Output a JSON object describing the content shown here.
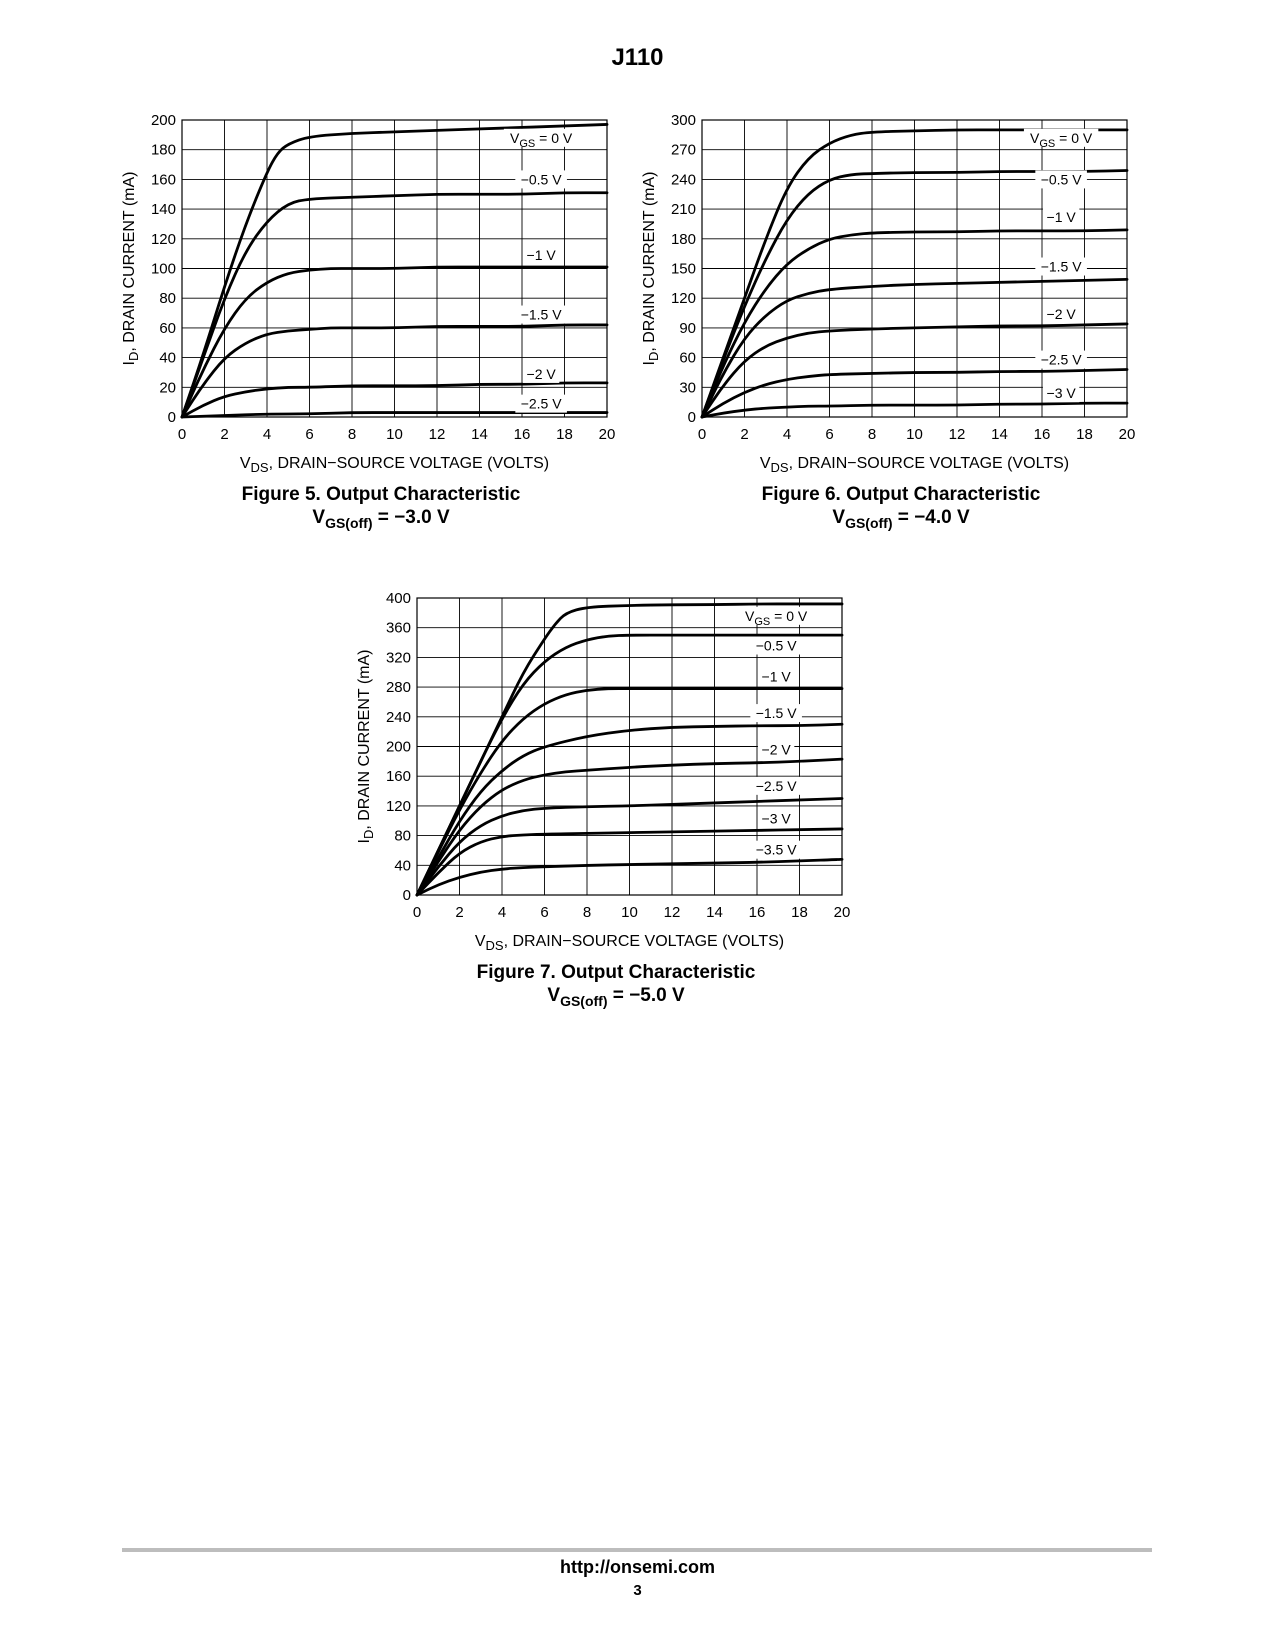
{
  "header": {
    "title": "J110"
  },
  "footer": {
    "url": "http://onsemi.com",
    "page": "3"
  },
  "chart_data": [
    {
      "type": "line",
      "figure_label": "Figure 5. Output Characteristic",
      "subtitle_main": "V",
      "subtitle_sub": "GS(off)",
      "subtitle_rest": " = −3.0 V",
      "xlabel_main": "V",
      "xlabel_sub": "DS",
      "xlabel_rest": ", DRAIN−SOURCE VOLTAGE (VOLTS)",
      "ylabel_main": "I",
      "ylabel_sub": "D",
      "ylabel_rest": ", DRAIN CURRENT (mA)",
      "xlim": [
        0,
        20
      ],
      "ylim": [
        0,
        200
      ],
      "xticks": [
        0,
        2,
        4,
        6,
        8,
        10,
        12,
        14,
        16,
        18,
        20
      ],
      "yticks": [
        0,
        20,
        40,
        60,
        80,
        100,
        120,
        140,
        160,
        180,
        200
      ],
      "grid": true,
      "series": [
        {
          "label_main": "V",
          "label_sub": "GS",
          "label_rest": " = 0 V",
          "label_y": 188,
          "x": [
            0,
            1,
            2,
            3,
            4,
            4.5,
            5,
            6,
            8,
            10,
            12,
            14,
            16,
            18,
            20
          ],
          "values": [
            0,
            42,
            88,
            130,
            165,
            178,
            184,
            189,
            191,
            192,
            193,
            194,
            195,
            196,
            197
          ]
        },
        {
          "label_main": "−0.5 V",
          "label_sub": "",
          "label_rest": "",
          "label_y": 160,
          "x": [
            0,
            1,
            2,
            3,
            4,
            5,
            6,
            8,
            10,
            12,
            14,
            16,
            18,
            20
          ],
          "values": [
            0,
            40,
            80,
            112,
            132,
            144,
            147,
            148,
            149,
            150,
            150,
            150,
            151,
            151
          ]
        },
        {
          "label_main": "−1 V",
          "label_sub": "",
          "label_rest": "",
          "label_y": 109,
          "x": [
            0,
            1,
            2,
            3,
            4,
            5,
            6,
            7,
            8,
            10,
            12,
            14,
            16,
            18,
            20
          ],
          "values": [
            0,
            32,
            60,
            80,
            91,
            97,
            99,
            100,
            100,
            100,
            101,
            101,
            101,
            101,
            101
          ]
        },
        {
          "label_main": "−1.5 V",
          "label_sub": "",
          "label_rest": "",
          "label_y": 69,
          "x": [
            0,
            1,
            2,
            3,
            4,
            5,
            6,
            7,
            8,
            10,
            12,
            14,
            16,
            18,
            20
          ],
          "values": [
            0,
            22,
            40,
            50,
            56,
            58,
            59,
            60,
            60,
            60,
            61,
            61,
            61,
            62,
            62
          ]
        },
        {
          "label_main": "−2 V",
          "label_sub": "",
          "label_rest": "",
          "label_y": 29,
          "x": [
            0,
            1,
            2,
            3,
            4,
            5,
            6,
            8,
            10,
            12,
            14,
            16,
            18,
            20
          ],
          "values": [
            0,
            8,
            14,
            17,
            19,
            20,
            20,
            21,
            21,
            21,
            22,
            22,
            23,
            23
          ]
        },
        {
          "label_main": "−2.5 V",
          "label_sub": "",
          "label_rest": "",
          "label_y": 9,
          "x": [
            0,
            2,
            4,
            6,
            8,
            10,
            12,
            14,
            16,
            18,
            20
          ],
          "values": [
            0,
            1,
            2,
            2,
            3,
            3,
            3,
            3,
            3,
            3,
            3
          ]
        }
      ]
    },
    {
      "type": "line",
      "figure_label": "Figure 6. Output Characteristic",
      "subtitle_main": "V",
      "subtitle_sub": "GS(off)",
      "subtitle_rest": " = −4.0 V",
      "xlabel_main": "V",
      "xlabel_sub": "DS",
      "xlabel_rest": ", DRAIN−SOURCE VOLTAGE (VOLTS)",
      "ylabel_main": "I",
      "ylabel_sub": "D",
      "ylabel_rest": ", DRAIN CURRENT (mA)",
      "xlim": [
        0,
        20
      ],
      "ylim": [
        0,
        300
      ],
      "xticks": [
        0,
        2,
        4,
        6,
        8,
        10,
        12,
        14,
        16,
        18,
        20
      ],
      "yticks": [
        0,
        30,
        60,
        90,
        120,
        150,
        180,
        210,
        240,
        270,
        300
      ],
      "grid": true,
      "series": [
        {
          "label_main": "V",
          "label_sub": "GS",
          "label_rest": " = 0 V",
          "label_y": 282,
          "x": [
            0,
            1,
            2,
            3,
            4,
            5,
            6,
            7,
            8,
            10,
            12,
            14,
            16,
            18,
            20
          ],
          "values": [
            0,
            60,
            120,
            180,
            232,
            262,
            277,
            285,
            288,
            289,
            290,
            290,
            290,
            290,
            290
          ]
        },
        {
          "label_main": "−0.5 V",
          "label_sub": "",
          "label_rest": "",
          "label_y": 240,
          "x": [
            0,
            1,
            2,
            3,
            4,
            5,
            6,
            7,
            8,
            10,
            12,
            14,
            16,
            18,
            20
          ],
          "values": [
            0,
            58,
            112,
            160,
            200,
            226,
            240,
            245,
            246,
            247,
            247,
            248,
            248,
            248,
            249
          ]
        },
        {
          "label_main": "−1 V",
          "label_sub": "",
          "label_rest": "",
          "label_y": 202,
          "x": [
            0,
            1,
            2,
            3,
            4,
            5,
            6,
            7,
            8,
            10,
            12,
            14,
            16,
            18,
            20
          ],
          "values": [
            0,
            52,
            96,
            130,
            155,
            170,
            180,
            184,
            186,
            187,
            187,
            188,
            188,
            188,
            189
          ]
        },
        {
          "label_main": "−1.5 V",
          "label_sub": "",
          "label_rest": "",
          "label_y": 152,
          "x": [
            0,
            1,
            2,
            3,
            4,
            5,
            6,
            8,
            10,
            12,
            14,
            16,
            18,
            20
          ],
          "values": [
            0,
            44,
            80,
            103,
            118,
            125,
            129,
            132,
            134,
            135,
            136,
            137,
            138,
            139
          ]
        },
        {
          "label_main": "−2 V",
          "label_sub": "",
          "label_rest": "",
          "label_y": 104,
          "x": [
            0,
            1,
            2,
            3,
            4,
            5,
            6,
            8,
            10,
            12,
            14,
            16,
            18,
            20
          ],
          "values": [
            0,
            32,
            57,
            72,
            80,
            85,
            87,
            89,
            90,
            91,
            92,
            92,
            93,
            94
          ]
        },
        {
          "label_main": "−2.5 V",
          "label_sub": "",
          "label_rest": "",
          "label_y": 58,
          "x": [
            0,
            1,
            2,
            3,
            4,
            5,
            6,
            8,
            10,
            12,
            14,
            16,
            18,
            20
          ],
          "values": [
            0,
            14,
            25,
            33,
            38,
            41,
            43,
            44,
            45,
            45,
            46,
            46,
            47,
            48
          ]
        },
        {
          "label_main": "−3 V",
          "label_sub": "",
          "label_rest": "",
          "label_y": 24,
          "x": [
            0,
            1,
            2,
            3,
            4,
            5,
            6,
            8,
            10,
            12,
            14,
            16,
            18,
            20
          ],
          "values": [
            0,
            4,
            7,
            9,
            10,
            11,
            11,
            12,
            12,
            12,
            13,
            13,
            14,
            14
          ]
        }
      ]
    },
    {
      "type": "line",
      "figure_label": "Figure 7. Output Characteristic",
      "subtitle_main": "V",
      "subtitle_sub": "GS(off)",
      "subtitle_rest": " = −5.0 V",
      "xlabel_main": "V",
      "xlabel_sub": "DS",
      "xlabel_rest": ", DRAIN−SOURCE VOLTAGE (VOLTS)",
      "ylabel_main": "I",
      "ylabel_sub": "D",
      "ylabel_rest": ", DRAIN CURRENT (mA)",
      "xlim": [
        0,
        20
      ],
      "ylim": [
        0,
        400
      ],
      "xticks": [
        0,
        2,
        4,
        6,
        8,
        10,
        12,
        14,
        16,
        18,
        20
      ],
      "yticks": [
        0,
        40,
        80,
        120,
        160,
        200,
        240,
        280,
        320,
        360,
        400
      ],
      "grid": true,
      "series": [
        {
          "label_main": "V",
          "label_sub": "GS",
          "label_rest": " = 0 V",
          "label_y": 376,
          "x": [
            0,
            1,
            2,
            3,
            4,
            5,
            6,
            6.5,
            7,
            8,
            10,
            12,
            14,
            16,
            18,
            20
          ],
          "values": [
            0,
            60,
            120,
            180,
            240,
            300,
            345,
            365,
            380,
            388,
            390,
            391,
            391,
            392,
            392,
            392
          ]
        },
        {
          "label_main": "−0.5 V",
          "label_sub": "",
          "label_rest": "",
          "label_y": 336,
          "x": [
            0,
            1,
            2,
            3,
            4,
            5,
            6,
            7,
            8,
            9,
            10,
            12,
            14,
            16,
            18,
            20
          ],
          "values": [
            0,
            60,
            120,
            180,
            238,
            285,
            315,
            334,
            344,
            349,
            350,
            350,
            350,
            350,
            350,
            350
          ]
        },
        {
          "label_main": "−1 V",
          "label_sub": "",
          "label_rest": "",
          "label_y": 294,
          "x": [
            0,
            1,
            2,
            3,
            4,
            5,
            6,
            7,
            8,
            9,
            10,
            12,
            14,
            16,
            18,
            20
          ],
          "values": [
            0,
            58,
            115,
            165,
            208,
            238,
            258,
            270,
            276,
            278,
            278,
            278,
            278,
            278,
            278,
            278
          ]
        },
        {
          "label_main": "−1.5 V",
          "label_sub": "",
          "label_rest": "",
          "label_y": 245,
          "x": [
            0,
            1,
            2,
            3,
            4,
            5,
            6,
            8,
            10,
            12,
            14,
            16,
            18,
            20
          ],
          "values": [
            0,
            50,
            100,
            140,
            168,
            188,
            200,
            214,
            222,
            226,
            227,
            228,
            228,
            230
          ]
        },
        {
          "label_main": "−2 V",
          "label_sub": "",
          "label_rest": "",
          "label_y": 196,
          "x": [
            0,
            1,
            2,
            3,
            4,
            5,
            6,
            7,
            8,
            10,
            12,
            14,
            16,
            18,
            20
          ],
          "values": [
            0,
            45,
            88,
            120,
            142,
            155,
            162,
            166,
            168,
            172,
            175,
            177,
            178,
            180,
            183
          ]
        },
        {
          "label_main": "−2.5 V",
          "label_sub": "",
          "label_rest": "",
          "label_y": 147,
          "x": [
            0,
            1,
            2,
            3,
            4,
            5,
            6,
            8,
            10,
            12,
            14,
            16,
            18,
            20
          ],
          "values": [
            0,
            38,
            72,
            94,
            107,
            114,
            117,
            119,
            120,
            122,
            124,
            126,
            128,
            130
          ]
        },
        {
          "label_main": "−3 V",
          "label_sub": "",
          "label_rest": "",
          "label_y": 103,
          "x": [
            0,
            1,
            2,
            3,
            4,
            5,
            6,
            8,
            10,
            12,
            14,
            16,
            18,
            20
          ],
          "values": [
            0,
            30,
            57,
            72,
            79,
            81,
            82,
            83,
            84,
            85,
            86,
            87,
            88,
            89
          ]
        },
        {
          "label_main": "−3.5 V",
          "label_sub": "",
          "label_rest": "",
          "label_y": 61,
          "x": [
            0,
            1,
            2,
            3,
            4,
            5,
            6,
            8,
            10,
            12,
            14,
            16,
            18,
            20
          ],
          "values": [
            0,
            14,
            24,
            31,
            35,
            37,
            38,
            40,
            41,
            42,
            43,
            44,
            46,
            48
          ]
        }
      ]
    }
  ]
}
